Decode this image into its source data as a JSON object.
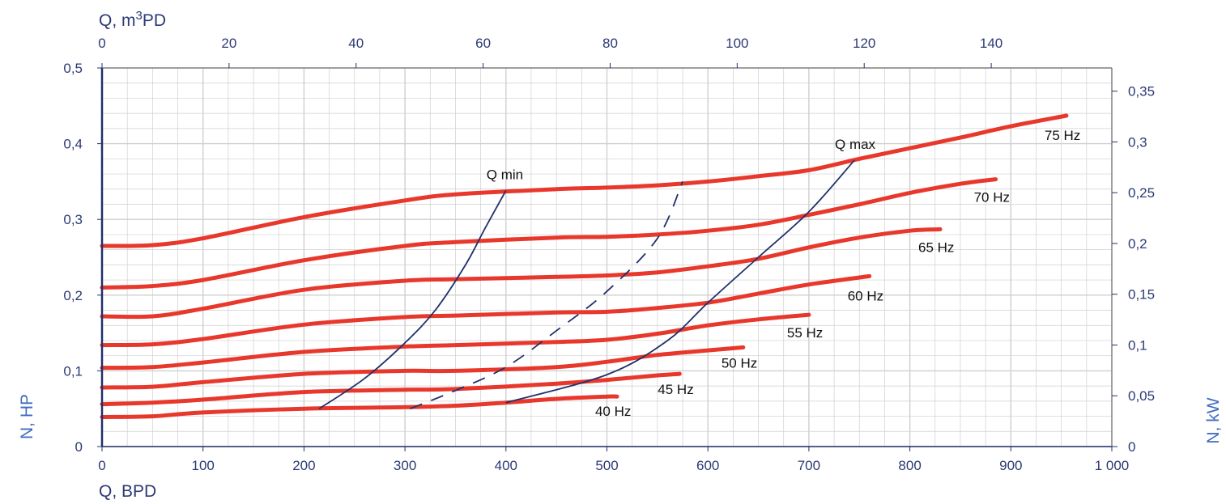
{
  "chart_data": {
    "type": "line",
    "x_bottom": {
      "label": "Q, BPD",
      "range": [
        0,
        1000
      ],
      "ticks": [
        0,
        100,
        200,
        300,
        400,
        500,
        600,
        700,
        800,
        900,
        1000
      ],
      "tick_labels": [
        "0",
        "100",
        "200",
        "300",
        "400",
        "500",
        "600",
        "700",
        "800",
        "900",
        "1 000"
      ]
    },
    "x_top": {
      "label_main": "Q, m",
      "label_sup": "3",
      "label_tail": "PD",
      "ticks": [
        0,
        20,
        40,
        60,
        80,
        100,
        120,
        140
      ],
      "tick_labels": [
        "0",
        "20",
        "40",
        "60",
        "80",
        "100",
        "120",
        "140"
      ]
    },
    "y_left": {
      "label": "N, HP",
      "range": [
        0,
        0.5
      ],
      "ticks": [
        0,
        0.1,
        0.2,
        0.3,
        0.4,
        0.5
      ],
      "tick_labels": [
        "0",
        "0,1",
        "0,2",
        "0,3",
        "0,4",
        "0,5"
      ]
    },
    "y_right": {
      "label": "N, kW",
      "ticks": [
        0,
        0.05,
        0.1,
        0.15,
        0.2,
        0.25,
        0.3,
        0.35
      ],
      "tick_labels": [
        "0",
        "0,05",
        "0,1",
        "0,15",
        "0,2",
        "0,25",
        "0,3",
        "0,35"
      ]
    },
    "grid": true,
    "series": [
      {
        "name": "75 Hz",
        "x": [
          0,
          50,
          100,
          200,
          300,
          350,
          450,
          500,
          550,
          600,
          650,
          700,
          750,
          800,
          850,
          900,
          955
        ],
        "y": [
          0.265,
          0.266,
          0.275,
          0.303,
          0.325,
          0.333,
          0.34,
          0.342,
          0.345,
          0.35,
          0.357,
          0.365,
          0.38,
          0.394,
          0.408,
          0.423,
          0.437
        ]
      },
      {
        "name": "70 Hz",
        "x": [
          0,
          50,
          100,
          200,
          300,
          350,
          450,
          500,
          550,
          600,
          650,
          700,
          750,
          800,
          850,
          885
        ],
        "y": [
          0.21,
          0.212,
          0.22,
          0.246,
          0.265,
          0.27,
          0.276,
          0.277,
          0.28,
          0.285,
          0.293,
          0.306,
          0.32,
          0.335,
          0.347,
          0.353
        ]
      },
      {
        "name": "65 Hz",
        "x": [
          0,
          50,
          100,
          200,
          300,
          350,
          450,
          500,
          550,
          600,
          650,
          700,
          750,
          800,
          830
        ],
        "y": [
          0.172,
          0.172,
          0.182,
          0.207,
          0.219,
          0.221,
          0.224,
          0.226,
          0.23,
          0.238,
          0.248,
          0.263,
          0.276,
          0.285,
          0.287
        ]
      },
      {
        "name": "60 Hz",
        "x": [
          0,
          50,
          100,
          200,
          300,
          350,
          450,
          500,
          550,
          600,
          650,
          700,
          760
        ],
        "y": [
          0.134,
          0.135,
          0.142,
          0.161,
          0.171,
          0.173,
          0.177,
          0.178,
          0.183,
          0.19,
          0.202,
          0.214,
          0.225
        ]
      },
      {
        "name": "55 Hz",
        "x": [
          0,
          50,
          100,
          200,
          300,
          350,
          450,
          500,
          550,
          600,
          650,
          700
        ],
        "y": [
          0.104,
          0.105,
          0.111,
          0.125,
          0.132,
          0.134,
          0.138,
          0.141,
          0.149,
          0.16,
          0.168,
          0.174
        ]
      },
      {
        "name": "50 Hz",
        "x": [
          0,
          50,
          100,
          200,
          300,
          350,
          450,
          500,
          550,
          600,
          635
        ],
        "y": [
          0.078,
          0.079,
          0.085,
          0.096,
          0.1,
          0.1,
          0.105,
          0.112,
          0.121,
          0.127,
          0.131
        ]
      },
      {
        "name": "45 Hz",
        "x": [
          0,
          50,
          100,
          200,
          300,
          350,
          450,
          500,
          550,
          572
        ],
        "y": [
          0.056,
          0.058,
          0.062,
          0.072,
          0.075,
          0.076,
          0.083,
          0.088,
          0.094,
          0.096
        ]
      },
      {
        "name": "40 Hz",
        "x": [
          0,
          50,
          100,
          200,
          300,
          350,
          400,
          450,
          500,
          510
        ],
        "y": [
          0.039,
          0.04,
          0.045,
          0.05,
          0.052,
          0.054,
          0.058,
          0.063,
          0.066,
          0.066
        ]
      }
    ],
    "boundaries": [
      {
        "name": "Q min",
        "style": "solid",
        "x": [
          215,
          260,
          300,
          330,
          360,
          380,
          400
        ],
        "y": [
          0.05,
          0.09,
          0.137,
          0.18,
          0.24,
          0.29,
          0.338
        ]
      },
      {
        "name": "Q max",
        "style": "solid",
        "x": [
          400,
          500,
          560,
          600,
          650,
          700,
          745
        ],
        "y": [
          0.058,
          0.095,
          0.14,
          0.19,
          0.25,
          0.31,
          0.378
        ]
      },
      {
        "name": "",
        "style": "dashed",
        "x": [
          305,
          350,
          400,
          450,
          500,
          550,
          575
        ],
        "y": [
          0.05,
          0.074,
          0.105,
          0.153,
          0.205,
          0.275,
          0.35
        ]
      }
    ],
    "colors": {
      "curve": "#e8382c",
      "boundary": "#22306a",
      "axis": "#22306a",
      "grid": "#cfcfcf",
      "side_title": "#3f6cc0"
    }
  }
}
